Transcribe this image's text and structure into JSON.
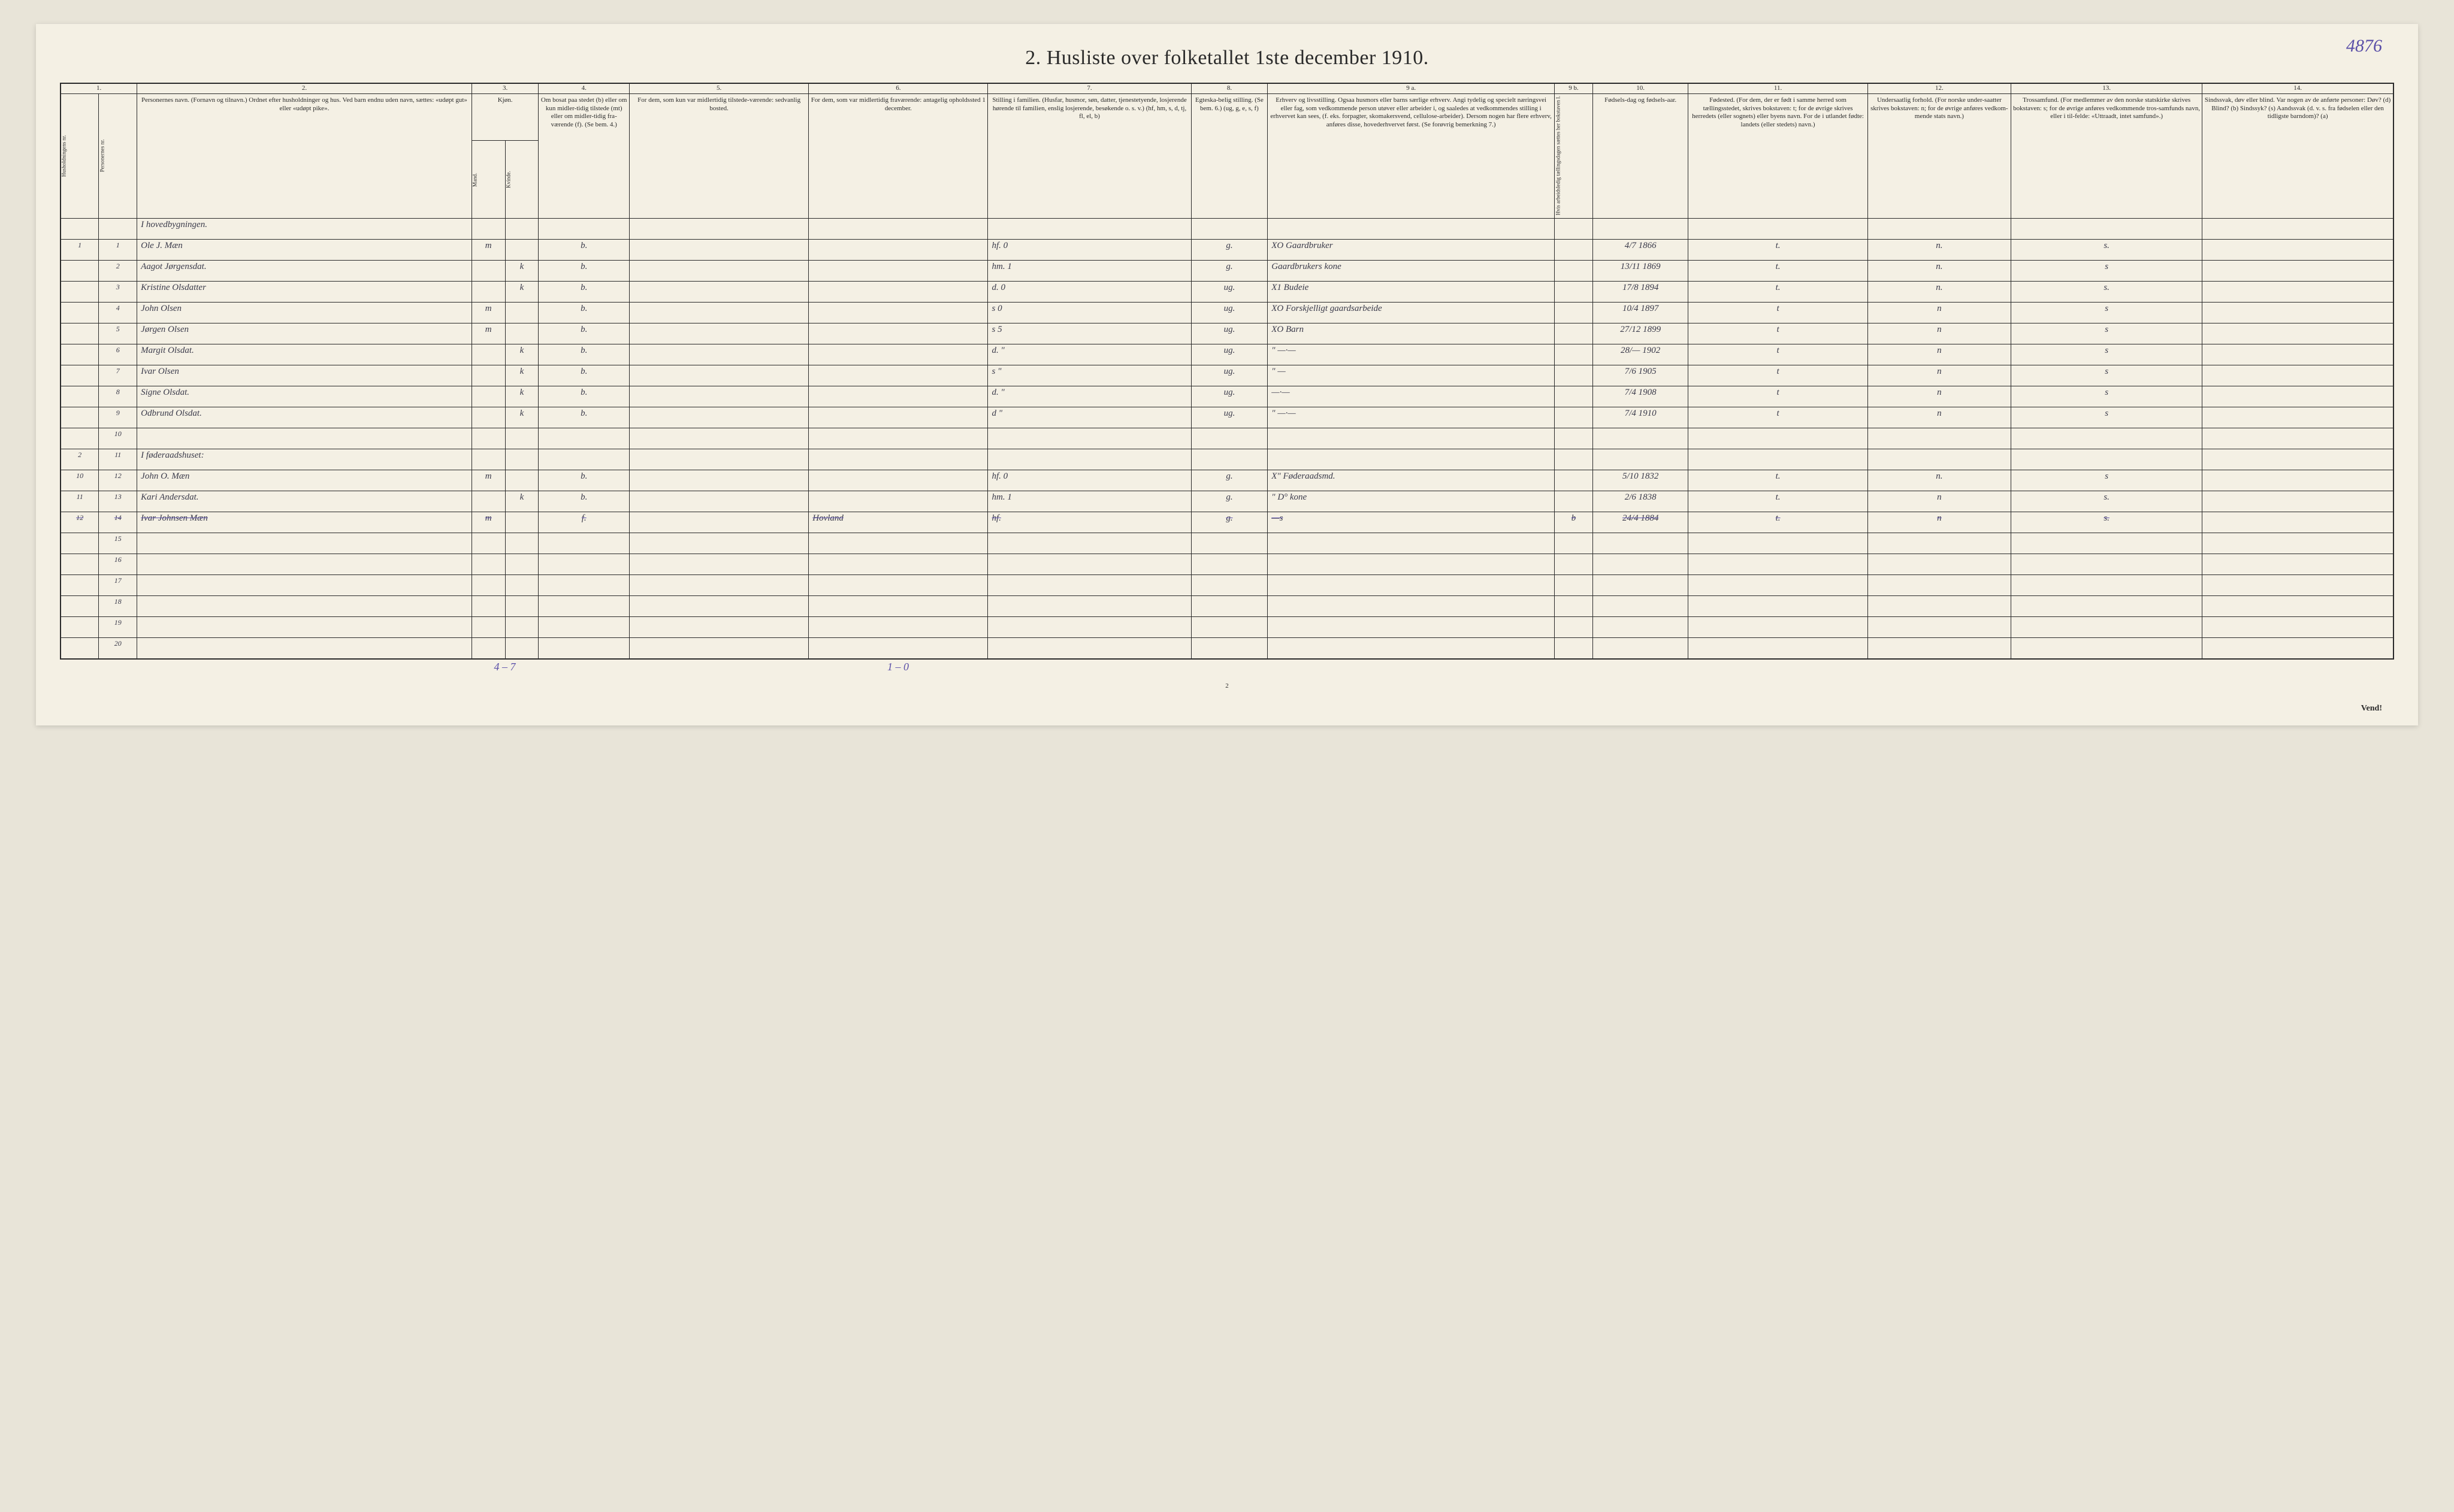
{
  "title": "2.  Husliste over folketallet 1ste december 1910.",
  "page_number_handwritten": "4876",
  "bottom_page_number": "2",
  "vend": "Vend!",
  "colnums": [
    "1.",
    "2.",
    "3.",
    "4.",
    "5.",
    "6.",
    "7.",
    "8.",
    "9 a.",
    "9 b.",
    "10.",
    "11.",
    "12.",
    "13.",
    "14."
  ],
  "headers": {
    "c1a": "Husholdningens nr.",
    "c1b": "Personernes nr.",
    "c2": "Personernes navn.\n(Fornavn og tilnavn.)\nOrdnet efter husholdninger og hus.\nVed barn endnu uden navn, sættes: «udøpt gut» eller «udøpt pike».",
    "c3": "Kjøn.",
    "c3a": "Mand.",
    "c3b": "Kvinde.",
    "c3s": "m.  k.",
    "c4": "Om bosat paa stedet (b) eller om kun midler-tidig tilstede (mt) eller om midler-tidig fra-værende (f). (Se bem. 4.)",
    "c5": "For dem, som kun var midlertidig tilstede-værende:\nsedvanlig bosted.",
    "c6": "For dem, som var midlertidig fraværende:\nantagelig opholdssted 1 december.",
    "c7": "Stilling i familien.\n(Husfar, husmor, søn, datter, tjenestetyende, losjerende hørende til familien, enslig losjerende, besøkende o. s. v.)\n(hf, hm, s, d, tj, fl, el, b)",
    "c8": "Egteska-belig stilling.\n(Se bem. 6.)\n(ug, g, e, s, f)",
    "c9a": "Erhverv og livsstilling.\nOgsaa husmors eller barns særlige erhverv. Angi tydelig og specielt næringsvei eller fag, som vedkommende person utøver eller arbeider i, og saaledes at vedkommendes stilling i erhvervet kan sees, (f. eks. forpagter, skomakersvend, cellulose-arbeider). Dersom nogen har flere erhverv, anføres disse, hovederhvervet først.\n(Se forøvrig bemerkning 7.)",
    "c9b": "Hvis arbeidsledig tællingsdagen sættes her bokstaven l.",
    "c10": "Fødsels-dag og fødsels-aar.",
    "c11": "Fødested.\n(For dem, der er født i samme herred som tællingsstedet, skrives bokstaven: t; for de øvrige skrives herredets (eller sognets) eller byens navn. For de i utlandet fødte: landets (eller stedets) navn.)",
    "c12": "Undersaatlig forhold.\n(For norske under-saatter skrives bokstaven: n; for de øvrige anføres vedkom-mende stats navn.)",
    "c13": "Trossamfund.\n(For medlemmer av den norske statskirke skrives bokstaven: s; for de øvrige anføres vedkommende tros-samfunds navn, eller i til-felde: «Uttraadt, intet samfund».)",
    "c14": "Sindssvak, døv eller blind.\nVar nogen av de anførte personer:\nDøv?  (d)\nBlind?  (b)\nSindssyk?  (s)\nAandssvak (d. v. s. fra fødselen eller den tidligste barndom)?  (a)"
  },
  "rows": [
    {
      "hh": "",
      "pn": "",
      "name": "I hovedbygningen.",
      "sex": "",
      "bos": "",
      "c5": "",
      "c6": "",
      "fam": "",
      "egt": "",
      "erhv": "",
      "l": "",
      "fod": "",
      "fsted": "",
      "und": "",
      "tros": "",
      "c14": ""
    },
    {
      "hh": "1",
      "pn": "1",
      "name": "Ole J. Mæn",
      "sex": "m",
      "bos": "b.",
      "c5": "",
      "c6": "",
      "fam": "hf.   0",
      "egt": "g.",
      "erhv": "XO Gaardbruker",
      "l": "",
      "fod": "4/7 1866",
      "fsted": "t.",
      "und": "n.",
      "tros": "s.",
      "c14": ""
    },
    {
      "hh": "",
      "pn": "2",
      "name": "Aagot Jørgensdat.",
      "sex": "k",
      "bos": "b.",
      "c5": "",
      "c6": "",
      "fam": "hm.  1",
      "egt": "g.",
      "erhv": "  Gaardbrukers kone",
      "l": "",
      "fod": "13/11 1869",
      "fsted": "t.",
      "und": "n.",
      "tros": "s",
      "c14": ""
    },
    {
      "hh": "",
      "pn": "3",
      "name": "Kristine Olsdatter",
      "sex": "k",
      "bos": "b.",
      "c5": "",
      "c6": "",
      "fam": "d.   0",
      "egt": "ug.",
      "erhv": "X1  Budeie",
      "l": "",
      "fod": "17/8 1894",
      "fsted": "t.",
      "und": "n.",
      "tros": "s.",
      "c14": ""
    },
    {
      "hh": "",
      "pn": "4",
      "name": "John Olsen",
      "sex": "m",
      "bos": "b.",
      "c5": "",
      "c6": "",
      "fam": "s    0",
      "egt": "ug.",
      "erhv": "XO Forskjelligt gaardsarbeide",
      "l": "",
      "fod": "10/4 1897",
      "fsted": "t",
      "und": "n",
      "tros": "s",
      "c14": ""
    },
    {
      "hh": "",
      "pn": "5",
      "name": "Jørgen Olsen",
      "sex": "m",
      "bos": "b.",
      "c5": "",
      "c6": "",
      "fam": "s    5",
      "egt": "ug.",
      "erhv": "XO  Barn",
      "l": "",
      "fod": "27/12 1899",
      "fsted": "t",
      "und": "n",
      "tros": "s",
      "c14": ""
    },
    {
      "hh": "",
      "pn": "6",
      "name": "Margit Olsdat.",
      "sex": "k",
      "bos": "b.",
      "c5": "",
      "c6": "",
      "fam": "d.   \"",
      "egt": "ug.",
      "erhv": "\"   —·—",
      "l": "",
      "fod": "28/— 1902",
      "fsted": "t",
      "und": "n",
      "tros": "s",
      "c14": ""
    },
    {
      "hh": "",
      "pn": "7",
      "name": "Ivar Olsen",
      "sex": "k",
      "bos": "b.",
      "c5": "",
      "c6": "",
      "fam": "s    \"",
      "egt": "ug.",
      "erhv": "\"     —",
      "l": "",
      "fod": "7/6 1905",
      "fsted": "t",
      "und": "n",
      "tros": "s",
      "c14": ""
    },
    {
      "hh": "",
      "pn": "8",
      "name": "Signe Olsdat.",
      "sex": "k",
      "bos": "b.",
      "c5": "",
      "c6": "",
      "fam": "d.  \"",
      "egt": "ug.",
      "erhv": "    —·—",
      "l": "",
      "fod": "7/4 1908",
      "fsted": "t",
      "und": "n",
      "tros": "s",
      "c14": ""
    },
    {
      "hh": "",
      "pn": "9",
      "name": "Odbrund Olsdat.",
      "sex": "k",
      "bos": "b.",
      "c5": "",
      "c6": "",
      "fam": "d   \"",
      "egt": "ug.",
      "erhv": "\"    —·—",
      "l": "",
      "fod": "7/4 1910",
      "fsted": "t",
      "und": "n",
      "tros": "s",
      "c14": ""
    },
    {
      "hh": "",
      "pn": "10",
      "name": "",
      "sex": "",
      "bos": "",
      "c5": "",
      "c6": "",
      "fam": "",
      "egt": "",
      "erhv": "",
      "l": "",
      "fod": "",
      "fsted": "",
      "und": "",
      "tros": "",
      "c14": ""
    },
    {
      "hh": "2",
      "pn": "11",
      "name": "I føderaadshuset:",
      "sex": "",
      "bos": "",
      "c5": "",
      "c6": "",
      "fam": "",
      "egt": "",
      "erhv": "",
      "l": "",
      "fod": "",
      "fsted": "",
      "und": "",
      "tros": "",
      "c14": ""
    },
    {
      "hh": "10",
      "pn": "12",
      "name": "John O. Mæn",
      "sex": "m",
      "bos": "b.",
      "c5": "",
      "c6": "",
      "fam": "hf.   0",
      "egt": "g.",
      "erhv": "X\" Føderaadsmd.",
      "l": "",
      "fod": "5/10 1832",
      "fsted": "t.",
      "und": "n.",
      "tros": "s",
      "c14": ""
    },
    {
      "hh": "11",
      "pn": "13",
      "name": "Kari Andersdat.",
      "sex": "k",
      "bos": "b.",
      "c5": "",
      "c6": "",
      "fam": "hm. 1",
      "egt": "g.",
      "erhv": "\"   D° kone",
      "l": "",
      "fod": "2/6 1838",
      "fsted": "t.",
      "und": "n",
      "tros": "s.",
      "c14": ""
    },
    {
      "hh": "12",
      "pn": "14",
      "name": "Ivar Johnsen Mæn",
      "sex": "m",
      "bos": "f.",
      "c5": "",
      "c6": "Hovland",
      "fam": "hf.",
      "egt": "g.",
      "erhv": "—s",
      "l": "b",
      "fod": "24/4 1884",
      "fsted": "t.",
      "und": "n",
      "tros": "s.",
      "c14": "",
      "strike": true
    },
    {
      "hh": "",
      "pn": "15",
      "name": "",
      "sex": "",
      "bos": "",
      "c5": "",
      "c6": "",
      "fam": "",
      "egt": "",
      "erhv": "",
      "l": "",
      "fod": "",
      "fsted": "",
      "und": "",
      "tros": "",
      "c14": ""
    },
    {
      "hh": "",
      "pn": "16",
      "name": "",
      "sex": "",
      "bos": "",
      "c5": "",
      "c6": "",
      "fam": "",
      "egt": "",
      "erhv": "",
      "l": "",
      "fod": "",
      "fsted": "",
      "und": "",
      "tros": "",
      "c14": ""
    },
    {
      "hh": "",
      "pn": "17",
      "name": "",
      "sex": "",
      "bos": "",
      "c5": "",
      "c6": "",
      "fam": "",
      "egt": "",
      "erhv": "",
      "l": "",
      "fod": "",
      "fsted": "",
      "und": "",
      "tros": "",
      "c14": ""
    },
    {
      "hh": "",
      "pn": "18",
      "name": "",
      "sex": "",
      "bos": "",
      "c5": "",
      "c6": "",
      "fam": "",
      "egt": "",
      "erhv": "",
      "l": "",
      "fod": "",
      "fsted": "",
      "und": "",
      "tros": "",
      "c14": ""
    },
    {
      "hh": "",
      "pn": "19",
      "name": "",
      "sex": "",
      "bos": "",
      "c5": "",
      "c6": "",
      "fam": "",
      "egt": "",
      "erhv": "",
      "l": "",
      "fod": "",
      "fsted": "",
      "und": "",
      "tros": "",
      "c14": ""
    },
    {
      "hh": "",
      "pn": "20",
      "name": "",
      "sex": "",
      "bos": "",
      "c5": "",
      "c6": "",
      "fam": "",
      "egt": "",
      "erhv": "",
      "l": "",
      "fod": "",
      "fsted": "",
      "und": "",
      "tros": "",
      "c14": ""
    }
  ],
  "footer": {
    "col3": "4 – 7",
    "col6": "1 – 0"
  }
}
